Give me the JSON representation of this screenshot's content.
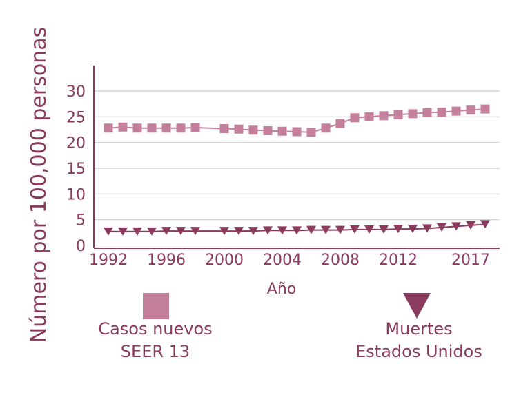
{
  "chart_data": {
    "type": "line",
    "title": "",
    "xlabel": "Año",
    "ylabel": "Número por 100,000  personas",
    "x_tick_labels": [
      "1992",
      "1996",
      "2000",
      "2004",
      "2008",
      "2012",
      "2017"
    ],
    "x_ticks": [
      1992,
      1996,
      2000,
      2004,
      2008,
      2012,
      2017
    ],
    "y_tick_labels": [
      "0",
      "5",
      "10",
      "15",
      "20",
      "25",
      "30"
    ],
    "y_ticks": [
      0,
      5,
      10,
      15,
      20,
      25,
      30
    ],
    "xlim": [
      1991,
      2019
    ],
    "ylim": [
      0,
      30
    ],
    "grid": true,
    "legend_position": "bottom",
    "series": [
      {
        "name": "Casos nuevos SEER 13",
        "legend_lines": [
          "Casos nuevos",
          "SEER 13"
        ],
        "marker": "square",
        "color": "#c47f9c",
        "x": [
          1992,
          1993,
          1994,
          1995,
          1996,
          1997,
          1998,
          2000,
          2001,
          2002,
          2003,
          2004,
          2005,
          2006,
          2007,
          2008,
          2009,
          2010,
          2011,
          2012,
          2013,
          2014,
          2015,
          2016,
          2017,
          2018
        ],
        "y": [
          22.8,
          23.0,
          22.8,
          22.8,
          22.8,
          22.8,
          22.9,
          22.7,
          22.6,
          22.4,
          22.3,
          22.2,
          22.1,
          22.0,
          22.8,
          23.7,
          24.8,
          25.0,
          25.2,
          25.4,
          25.6,
          25.8,
          25.9,
          26.1,
          26.3,
          26.5
        ]
      },
      {
        "name": "Muertes Estados Unidos",
        "legend_lines": [
          "Muertes",
          "Estados Unidos"
        ],
        "marker": "triangle-down",
        "color": "#8a3b5e",
        "x": [
          1992,
          1993,
          1994,
          1995,
          1996,
          1997,
          1998,
          2000,
          2001,
          2002,
          2003,
          2004,
          2005,
          2006,
          2007,
          2008,
          2009,
          2010,
          2011,
          2012,
          2013,
          2014,
          2015,
          2016,
          2017,
          2018
        ],
        "y": [
          2.7,
          2.7,
          2.7,
          2.7,
          2.8,
          2.8,
          2.8,
          2.8,
          2.8,
          2.8,
          2.9,
          2.9,
          2.9,
          3.0,
          3.0,
          3.0,
          3.1,
          3.1,
          3.1,
          3.2,
          3.2,
          3.3,
          3.5,
          3.7,
          3.9,
          4.1
        ]
      }
    ]
  },
  "colors": {
    "text": "#8a3b5e",
    "axis": "#8a3b5e",
    "grid": "#cccccc"
  }
}
